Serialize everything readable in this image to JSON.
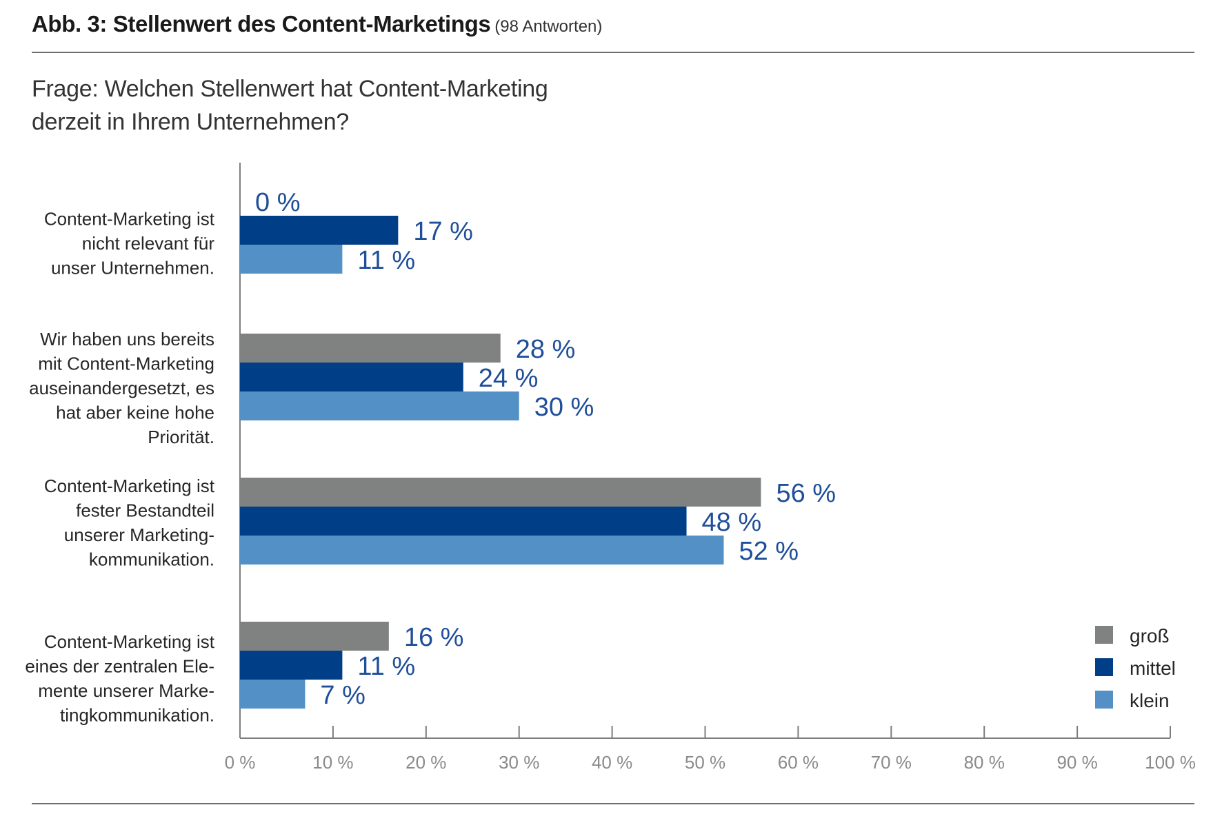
{
  "figure": {
    "title": "Abb. 3: Stellenwert des Content-Marketings",
    "subtitle": "(98 Antworten)",
    "question": "Frage: Welchen Stellenwert hat Content-Marketing derzeit in Ihrem Unternehmen?"
  },
  "chart_data": {
    "type": "bar",
    "orientation": "horizontal",
    "categories": [
      [
        "Content-Marketing ist",
        "nicht relevant für",
        "unser Unternehmen."
      ],
      [
        "Wir haben uns bereits",
        "mit Content-Marketing",
        "auseinandergesetzt, es",
        "hat aber keine hohe",
        "Priorität."
      ],
      [
        "Content-Marketing ist",
        "fester Bestandteil",
        "unserer Marketing-",
        "kommunikation."
      ],
      [
        "Content-Marketing ist",
        "eines der zentralen Ele-",
        "mente unserer Marke-",
        "tingkommunikation."
      ]
    ],
    "series": [
      {
        "name": "groß",
        "color": "#808282",
        "values": [
          0,
          28,
          56,
          16
        ]
      },
      {
        "name": "mittel",
        "color": "#003f87",
        "values": [
          17,
          24,
          48,
          11
        ]
      },
      {
        "name": "klein",
        "color": "#5390c5",
        "values": [
          11,
          30,
          52,
          7
        ]
      }
    ],
    "value_labels": [
      [
        "0 %",
        "28 %",
        "56 %",
        "16 %"
      ],
      [
        "17 %",
        "24 %",
        "48 %",
        "11 %"
      ],
      [
        "11 %",
        "30 %",
        "52 %",
        "7 %"
      ]
    ],
    "xlim": [
      0,
      100
    ],
    "x_ticks": [
      0,
      10,
      20,
      30,
      40,
      50,
      60,
      70,
      80,
      90,
      100
    ],
    "x_tick_labels": [
      "0 %",
      "10 %",
      "20 %",
      "30 %",
      "40 %",
      "50 %",
      "60 %",
      "70 %",
      "80 %",
      "90 %",
      "100 %"
    ],
    "grid": false,
    "legend_position": "bottom-right",
    "value_label_color": "#1f4e9a"
  }
}
